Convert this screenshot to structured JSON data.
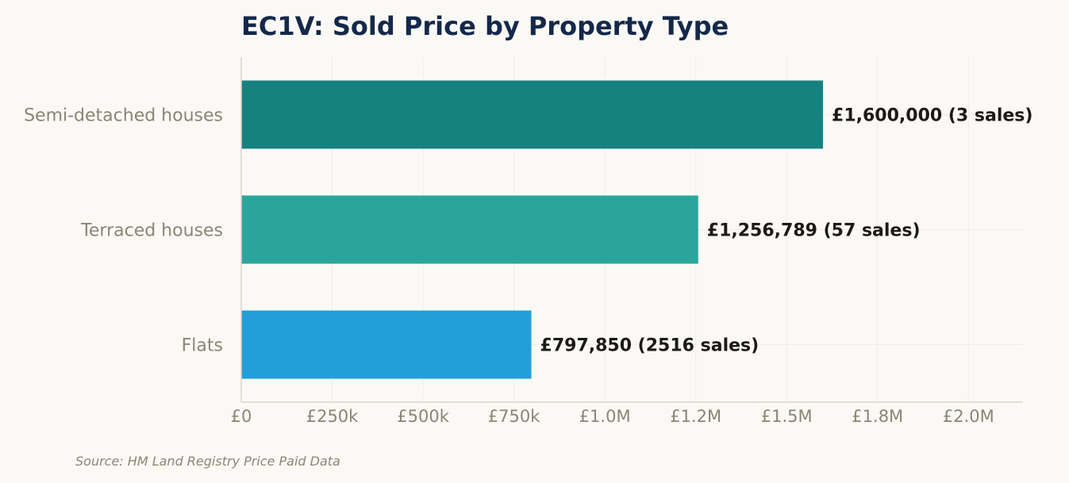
{
  "chart_data": {
    "type": "bar",
    "orientation": "horizontal",
    "title": "EC1V: Sold Price by Property Type",
    "categories": [
      "Semi-detached houses",
      "Terraced houses",
      "Flats"
    ],
    "values": [
      1600000,
      1256789,
      797850
    ],
    "value_labels": [
      "£1,600,000  (3 sales)",
      "£1,256,789  (57 sales)",
      "£797,850  (2516 sales)"
    ],
    "colors": [
      "#168280",
      "#2ba59b",
      "#229fda"
    ],
    "xlim": [
      0,
      2150000
    ],
    "x_ticks": [
      0,
      250000,
      500000,
      750000,
      1000000,
      1250000,
      1500000,
      1750000,
      2000000
    ],
    "x_tick_labels": [
      "£0",
      "£250k",
      "£500k",
      "£750k",
      "£1.0M",
      "£1.2M",
      "£1.5M",
      "£1.8M",
      "£2.0M"
    ],
    "grid": true,
    "source": "Source: HM Land Registry Price Paid Data"
  }
}
